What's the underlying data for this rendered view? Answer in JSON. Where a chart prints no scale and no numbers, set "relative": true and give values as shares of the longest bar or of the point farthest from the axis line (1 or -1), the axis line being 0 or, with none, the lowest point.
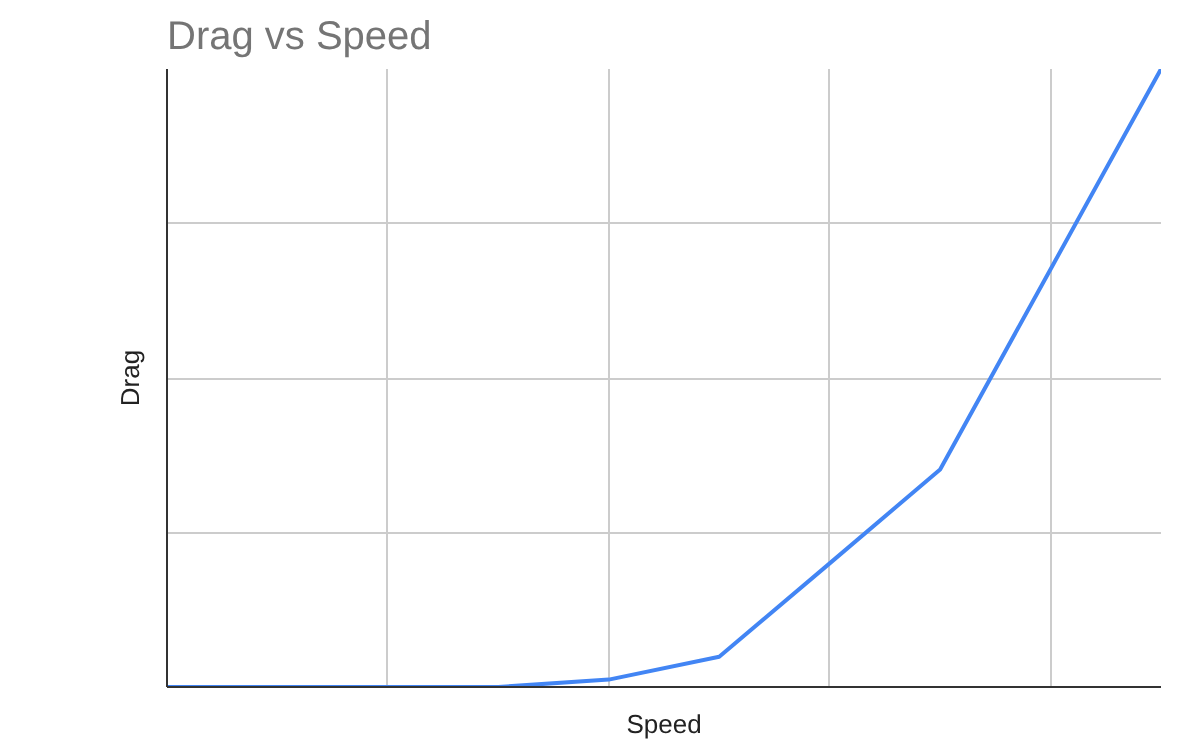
{
  "chart_data": {
    "type": "line",
    "title": "Drag vs Speed",
    "xlabel": "Speed",
    "ylabel": "Drag",
    "relative": true,
    "grid": true,
    "categories": [
      null,
      null,
      null,
      null,
      null,
      null,
      null,
      null,
      null,
      null
    ],
    "series": [
      {
        "color": "#4285f4",
        "values": [
          0,
          0,
          0,
          0,
          0.012,
          0.049,
          0.2,
          0.352,
          0.676,
          1
        ]
      }
    ]
  }
}
